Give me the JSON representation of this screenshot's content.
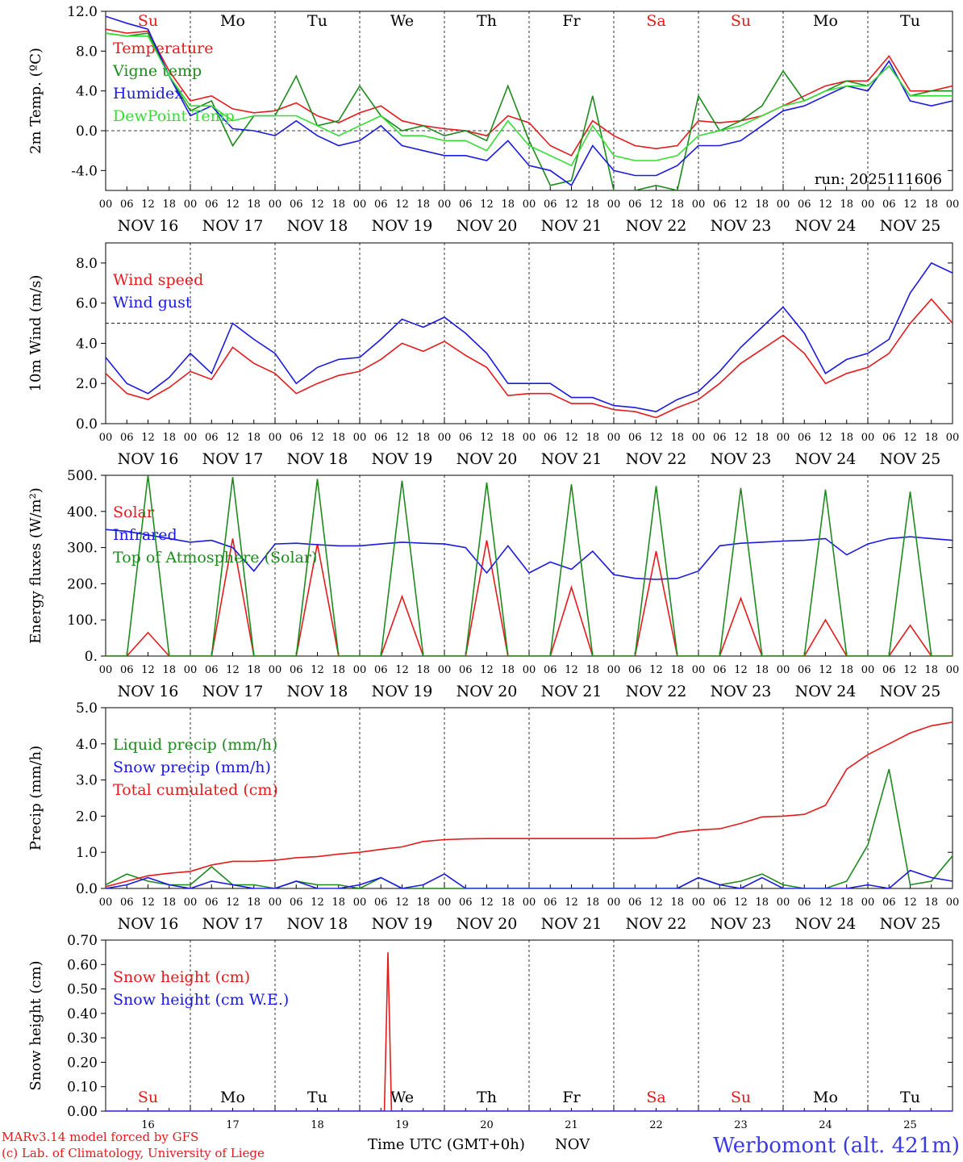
{
  "colors": {
    "red": "#e41a1c",
    "green": "#1e8a1e",
    "lightgreen": "#33dd33",
    "blue": "#1a1ae0",
    "site": "#3a3ae8"
  },
  "footer": {
    "model": "MARv3.14 model forced by GFS",
    "lab": "(c) Lab. of Climatology, University of Liege",
    "xlabel": "Time UTC (GMT+0h)",
    "month": "NOV",
    "site": "Werbomont (alt. 421m)"
  },
  "run_label": "run: 2025111606",
  "day_names": [
    {
      "label": "Su",
      "weekend": true
    },
    {
      "label": "Mo",
      "weekend": false
    },
    {
      "label": "Tu",
      "weekend": false
    },
    {
      "label": "We",
      "weekend": false
    },
    {
      "label": "Th",
      "weekend": false
    },
    {
      "label": "Fr",
      "weekend": false
    },
    {
      "label": "Sa",
      "weekend": true
    },
    {
      "label": "Su",
      "weekend": true
    },
    {
      "label": "Mo",
      "weekend": false
    },
    {
      "label": "Tu",
      "weekend": false
    }
  ],
  "date_labels": [
    "NOV 16",
    "NOV 17",
    "NOV 18",
    "NOV 19",
    "NOV 20",
    "NOV 21",
    "NOV 22",
    "NOV 23",
    "NOV 24",
    "NOV 25"
  ],
  "hour_labels": [
    "00",
    "06",
    "12",
    "18"
  ],
  "final_hour_label": "00",
  "day_numbers": [
    "16",
    "17",
    "18",
    "19",
    "20",
    "21",
    "22",
    "23",
    "24",
    "25"
  ],
  "chart_data": [
    {
      "type": "line",
      "ylabel": "2m Temp. (ºC)",
      "ylim": [
        -6,
        12
      ],
      "yticks": [
        -4,
        0,
        4,
        8,
        12
      ],
      "ytick_labels": [
        "-4.0",
        "0.0",
        "4.0",
        "8.0",
        "12.0"
      ],
      "ref_line": 0,
      "x": [
        0,
        6,
        12,
        18,
        24,
        30,
        36,
        42,
        48,
        54,
        60,
        66,
        72,
        78,
        84,
        90,
        96,
        102,
        108,
        114,
        120,
        126,
        132,
        138,
        144,
        150,
        156,
        162,
        168,
        174,
        180,
        186,
        192,
        198,
        204,
        210,
        216,
        222,
        228,
        234,
        240
      ],
      "series": [
        {
          "name": "Temperature",
          "color": "red",
          "values": [
            10.2,
            9.8,
            10.0,
            6.0,
            3.0,
            3.5,
            2.2,
            1.8,
            2.0,
            2.8,
            1.5,
            0.8,
            1.8,
            2.5,
            1.0,
            0.5,
            0.2,
            0.0,
            -0.5,
            1.5,
            0.8,
            -1.5,
            -2.5,
            1.0,
            -0.5,
            -1.5,
            -1.8,
            -1.5,
            1.0,
            0.8,
            1.0,
            1.5,
            2.5,
            3.5,
            4.5,
            5.0,
            5.0,
            7.5,
            4.0,
            4.0,
            4.5
          ]
        },
        {
          "name": "Vigne temp",
          "color": "green",
          "values": [
            9.8,
            9.5,
            9.8,
            5.5,
            2.0,
            3.0,
            -1.5,
            1.5,
            1.5,
            5.5,
            0.5,
            1.0,
            4.5,
            1.5,
            0.0,
            0.5,
            -0.5,
            0.0,
            -1.0,
            4.5,
            -1.0,
            -5.5,
            -5.0,
            3.5,
            -6.0,
            -6.0,
            -5.5,
            -6.0,
            3.5,
            0.0,
            1.0,
            2.5,
            6.0,
            3.0,
            4.0,
            5.0,
            4.5,
            6.5,
            3.5,
            4.0,
            4.0
          ]
        },
        {
          "name": "Humidex",
          "color": "blue",
          "values": [
            11.5,
            10.8,
            10.2,
            5.5,
            1.5,
            2.5,
            0.2,
            0.0,
            -0.5,
            1.0,
            -0.5,
            -1.5,
            -1.0,
            0.5,
            -1.5,
            -2.0,
            -2.5,
            -2.5,
            -3.0,
            -1.0,
            -3.5,
            -4.0,
            -5.5,
            -1.5,
            -4.0,
            -4.5,
            -4.5,
            -3.5,
            -1.5,
            -1.5,
            -1.0,
            0.5,
            2.0,
            2.5,
            3.5,
            4.5,
            4.0,
            7.0,
            3.0,
            2.5,
            3.0
          ]
        },
        {
          "name": "DewPoint Temp",
          "color": "lightgreen",
          "values": [
            9.8,
            9.5,
            9.5,
            5.5,
            2.5,
            2.5,
            1.0,
            1.5,
            1.5,
            1.5,
            0.5,
            -0.5,
            0.5,
            1.5,
            -0.5,
            -0.5,
            -1.0,
            -1.0,
            -2.0,
            1.0,
            -1.5,
            -2.5,
            -3.5,
            0.5,
            -2.5,
            -3.0,
            -3.0,
            -2.5,
            -0.5,
            0.0,
            0.5,
            1.5,
            2.5,
            3.0,
            4.0,
            4.5,
            4.5,
            6.5,
            3.5,
            3.5,
            3.5
          ]
        }
      ],
      "legend": "top-left",
      "annotation": "run: 2025111606"
    },
    {
      "type": "line",
      "ylabel": "10m Wind (m/s)",
      "ylim": [
        0,
        9
      ],
      "yticks": [
        0,
        2,
        4,
        6,
        8
      ],
      "ytick_labels": [
        "0.0",
        "2.0",
        "4.0",
        "6.0",
        "8.0"
      ],
      "ref_line": 5,
      "x": [
        0,
        6,
        12,
        18,
        24,
        30,
        36,
        42,
        48,
        54,
        60,
        66,
        72,
        78,
        84,
        90,
        96,
        102,
        108,
        114,
        120,
        126,
        132,
        138,
        144,
        150,
        156,
        162,
        168,
        174,
        180,
        186,
        192,
        198,
        204,
        210,
        216,
        222,
        228,
        234,
        240
      ],
      "series": [
        {
          "name": "Wind speed",
          "color": "red",
          "values": [
            2.5,
            1.5,
            1.2,
            1.8,
            2.6,
            2.2,
            3.8,
            3.0,
            2.5,
            1.5,
            2.0,
            2.4,
            2.6,
            3.2,
            4.0,
            3.6,
            4.1,
            3.4,
            2.8,
            1.4,
            1.5,
            1.5,
            1.0,
            1.0,
            0.7,
            0.6,
            0.3,
            0.8,
            1.2,
            2.0,
            3.0,
            3.7,
            4.4,
            3.5,
            2.0,
            2.5,
            2.8,
            3.5,
            5.0,
            6.2,
            5.0
          ]
        },
        {
          "name": "Wind gust",
          "color": "blue",
          "values": [
            3.3,
            2.0,
            1.5,
            2.3,
            3.5,
            2.5,
            5.0,
            4.2,
            3.5,
            2.0,
            2.8,
            3.2,
            3.3,
            4.2,
            5.2,
            4.8,
            5.3,
            4.5,
            3.5,
            2.0,
            2.0,
            2.0,
            1.3,
            1.3,
            0.9,
            0.8,
            0.6,
            1.2,
            1.6,
            2.6,
            3.8,
            4.8,
            5.8,
            4.5,
            2.5,
            3.2,
            3.5,
            4.2,
            6.5,
            8.0,
            7.5
          ]
        }
      ],
      "legend": "top-left"
    },
    {
      "type": "line",
      "ylabel": "Energy fluxes (W/m²)",
      "ylim": [
        0,
        500
      ],
      "yticks": [
        0,
        100,
        200,
        300,
        400,
        500
      ],
      "ytick_labels": [
        "0.",
        "100.",
        "200.",
        "300.",
        "400.",
        "500."
      ],
      "x": [
        0,
        6,
        12,
        18,
        24,
        30,
        36,
        42,
        48,
        54,
        60,
        66,
        72,
        78,
        84,
        90,
        96,
        102,
        108,
        114,
        120,
        126,
        132,
        138,
        144,
        150,
        156,
        162,
        168,
        174,
        180,
        186,
        192,
        198,
        204,
        210,
        216,
        222,
        228,
        234,
        240
      ],
      "series": [
        {
          "name": "Solar",
          "color": "red",
          "values": [
            0,
            0,
            65,
            0,
            0,
            0,
            325,
            0,
            0,
            0,
            310,
            0,
            0,
            0,
            165,
            0,
            0,
            0,
            320,
            0,
            0,
            0,
            190,
            0,
            0,
            0,
            290,
            0,
            0,
            0,
            160,
            0,
            0,
            0,
            100,
            0,
            0,
            0,
            85,
            0,
            0
          ]
        },
        {
          "name": "Infrared",
          "color": "blue",
          "values": [
            350,
            345,
            335,
            325,
            315,
            320,
            300,
            235,
            310,
            312,
            308,
            305,
            305,
            310,
            315,
            312,
            310,
            300,
            230,
            305,
            230,
            260,
            240,
            290,
            225,
            215,
            212,
            215,
            235,
            305,
            312,
            315,
            318,
            320,
            325,
            280,
            310,
            325,
            330,
            325,
            320
          ]
        },
        {
          "name": "Top of Atmosphere (Solar)",
          "color": "green",
          "values": [
            0,
            0,
            500,
            0,
            0,
            0,
            495,
            0,
            0,
            0,
            490,
            0,
            0,
            0,
            485,
            0,
            0,
            0,
            480,
            0,
            0,
            0,
            475,
            0,
            0,
            0,
            470,
            0,
            0,
            0,
            465,
            0,
            0,
            0,
            460,
            0,
            0,
            0,
            455,
            0,
            0
          ]
        }
      ],
      "legend": "top-left"
    },
    {
      "type": "line",
      "ylabel": "Precip (mm/h)",
      "ylim": [
        0,
        5
      ],
      "yticks": [
        0,
        1,
        2,
        3,
        4,
        5
      ],
      "ytick_labels": [
        "0.0",
        "1.0",
        "2.0",
        "3.0",
        "4.0",
        "5.0"
      ],
      "x": [
        0,
        6,
        12,
        18,
        24,
        30,
        36,
        42,
        48,
        54,
        60,
        66,
        72,
        78,
        84,
        90,
        96,
        102,
        108,
        114,
        120,
        126,
        132,
        138,
        144,
        150,
        156,
        162,
        168,
        174,
        180,
        186,
        192,
        198,
        204,
        210,
        216,
        222,
        228,
        234,
        240
      ],
      "series": [
        {
          "name": "Liquid precip (mm/h)",
          "color": "green",
          "values": [
            0.1,
            0.4,
            0.2,
            0.1,
            0.1,
            0.6,
            0.1,
            0.1,
            0.0,
            0.2,
            0.1,
            0.1,
            0.0,
            0.3,
            0.0,
            0.0,
            0.0,
            0.0,
            0.0,
            0.0,
            0.0,
            0.0,
            0.0,
            0.0,
            0.0,
            0.0,
            0.0,
            0.0,
            0.3,
            0.1,
            0.2,
            0.4,
            0.1,
            0.0,
            0.0,
            0.2,
            1.2,
            3.3,
            0.1,
            0.2,
            0.9
          ]
        },
        {
          "name": "Snow precip (mm/h)",
          "color": "blue",
          "values": [
            0.0,
            0.1,
            0.3,
            0.1,
            0.0,
            0.2,
            0.1,
            0.0,
            0.0,
            0.2,
            0.0,
            0.0,
            0.1,
            0.3,
            0.0,
            0.1,
            0.4,
            0.0,
            0.0,
            0.0,
            0.0,
            0.0,
            0.0,
            0.0,
            0.0,
            0.0,
            0.0,
            0.0,
            0.3,
            0.1,
            0.0,
            0.3,
            0.0,
            0.0,
            0.0,
            0.0,
            0.1,
            0.0,
            0.5,
            0.3,
            0.2
          ]
        },
        {
          "name": "Total cumulated (cm)",
          "color": "red",
          "values": [
            0.05,
            0.2,
            0.35,
            0.42,
            0.47,
            0.65,
            0.75,
            0.75,
            0.78,
            0.85,
            0.88,
            0.95,
            1.0,
            1.08,
            1.15,
            1.3,
            1.35,
            1.37,
            1.38,
            1.38,
            1.38,
            1.38,
            1.38,
            1.38,
            1.38,
            1.38,
            1.4,
            1.55,
            1.62,
            1.65,
            1.8,
            1.98,
            2.0,
            2.05,
            2.3,
            3.3,
            3.7,
            4.0,
            4.3,
            4.5,
            4.6
          ]
        }
      ],
      "legend": "top-left"
    },
    {
      "type": "line",
      "ylabel": "Snow height (cm)",
      "ylim": [
        0,
        0.7
      ],
      "yticks": [
        0,
        0.1,
        0.2,
        0.3,
        0.4,
        0.5,
        0.6,
        0.7
      ],
      "ytick_labels": [
        "0.00",
        "0.10",
        "0.20",
        "0.30",
        "0.40",
        "0.50",
        "0.60",
        "0.70"
      ],
      "x": [
        0,
        78,
        79,
        80,
        81,
        82,
        240
      ],
      "series": [
        {
          "name": "Snow height (cm)",
          "color": "red",
          "values": [
            0,
            0,
            0,
            0.65,
            0,
            0,
            0
          ]
        },
        {
          "name": "Snow height (cm W.E.)",
          "color": "blue",
          "values": [
            0,
            0,
            0,
            0,
            0,
            0,
            0
          ]
        }
      ],
      "legend": "top-left"
    }
  ]
}
